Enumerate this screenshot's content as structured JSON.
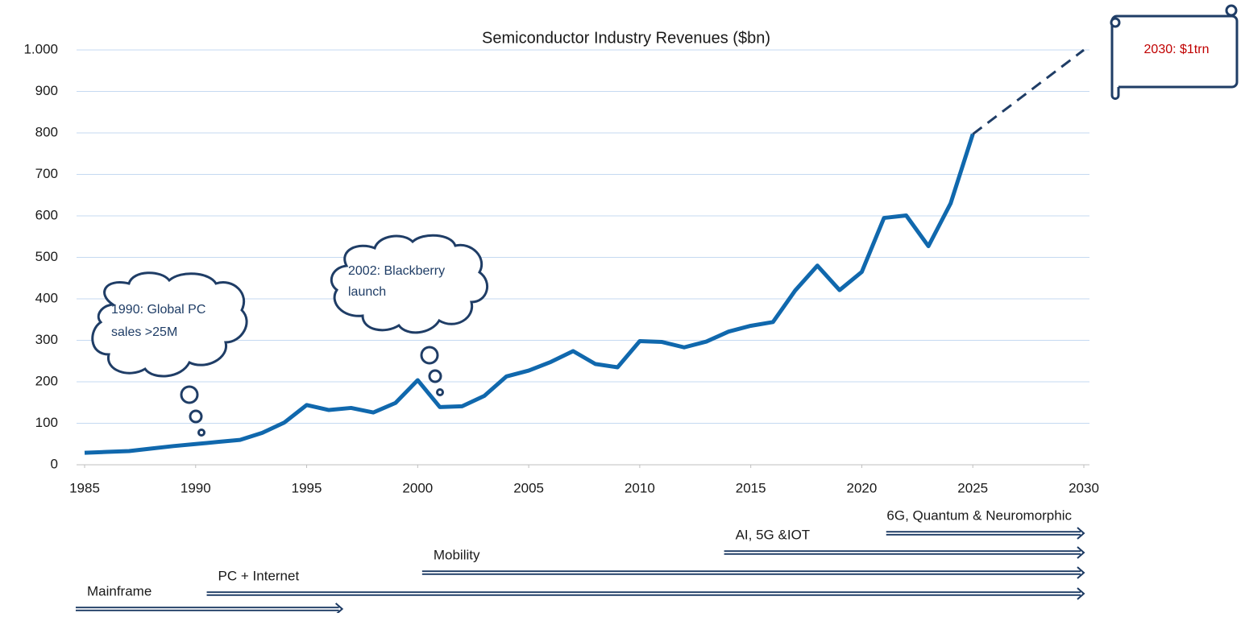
{
  "chart_data": {
    "type": "line",
    "title": "Semiconductor Industry Revenues ($bn)",
    "x": [
      1985,
      1986,
      1987,
      1988,
      1989,
      1990,
      1991,
      1992,
      1993,
      1994,
      1995,
      1996,
      1997,
      1998,
      1999,
      2000,
      2001,
      2002,
      2003,
      2004,
      2005,
      2006,
      2007,
      2008,
      2009,
      2010,
      2011,
      2012,
      2013,
      2014,
      2015,
      2016,
      2017,
      2018,
      2019,
      2020,
      2021,
      2022,
      2023,
      2024,
      2025,
      2030
    ],
    "series": [
      {
        "color": "#1068ad",
        "dashed": false,
        "values": [
          29,
          31,
          33,
          39,
          45,
          50,
          55,
          60,
          77,
          102,
          144,
          132,
          137,
          126,
          149,
          204,
          139,
          141,
          166,
          213,
          227,
          248,
          274,
          243,
          235,
          298,
          296,
          283,
          297,
          321,
          335,
          344,
          420,
          480,
          421,
          465,
          595,
          601,
          527,
          630,
          797,
          null
        ]
      },
      {
        "color": "#1f3d66",
        "dashed": true,
        "values": [
          null,
          null,
          null,
          null,
          null,
          null,
          null,
          null,
          null,
          null,
          null,
          null,
          null,
          null,
          null,
          null,
          null,
          null,
          null,
          null,
          null,
          null,
          null,
          null,
          null,
          null,
          null,
          null,
          null,
          null,
          null,
          null,
          null,
          null,
          null,
          null,
          null,
          null,
          null,
          null,
          797,
          1000
        ]
      }
    ],
    "xlim": [
      1985,
      2030
    ],
    "xticks": [
      1985,
      1990,
      1995,
      2000,
      2005,
      2010,
      2015,
      2020,
      2025,
      2030
    ],
    "ylim": [
      0,
      1000
    ],
    "yticks": [
      0,
      100,
      200,
      300,
      400,
      500,
      600,
      700,
      800,
      900,
      {
        "value": 1000,
        "label": "1.000"
      }
    ],
    "grid": true,
    "annotations": [
      {
        "lines": [
          "1990: Global PC",
          "sales >25M"
        ]
      },
      {
        "lines": [
          "2002: Blackberry",
          "launch"
        ]
      },
      {
        "lines": [
          "2030: $1trn"
        ],
        "color": "#c00000"
      }
    ],
    "eras": [
      {
        "label": "Mainframe",
        "start": 1984.6,
        "end": 1996.6
      },
      {
        "label": "PC + Internet",
        "start": 1990.5,
        "end": 2030
      },
      {
        "label": "Mobility",
        "start": 2000.2,
        "end": 2030
      },
      {
        "label": "AI, 5G &IOT",
        "start": 2013.8,
        "end": 2030
      },
      {
        "label": "6G, Quantum & Neuromorphic",
        "start": 2021.1,
        "end": 2030
      }
    ],
    "era_color": "#1c3a63"
  }
}
